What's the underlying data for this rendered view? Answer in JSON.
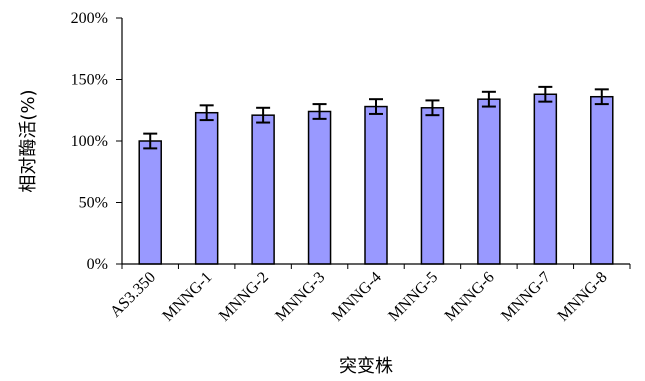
{
  "chart_data": {
    "type": "bar",
    "title": "",
    "xlabel": "突变株",
    "ylabel": "相对酶活(%)",
    "ylim": [
      0,
      200
    ],
    "yticks": [
      0,
      50,
      100,
      150,
      200
    ],
    "ytick_labels": [
      "0%",
      "50%",
      "100%",
      "150%",
      "200%"
    ],
    "categories": [
      "AS3.350",
      "MNNG-1",
      "MNNG-2",
      "MNNG-3",
      "MNNG-4",
      "MNNG-5",
      "MNNG-6",
      "MNNG-7",
      "MNNG-8"
    ],
    "values": [
      100,
      123,
      121,
      124,
      128,
      127,
      134,
      138,
      136
    ],
    "error": [
      6,
      6,
      6,
      6,
      6,
      6,
      6,
      6,
      6
    ],
    "grid": false,
    "legend": "none",
    "colors": {
      "bar_fill": "#9999ff",
      "bar_stroke": "#000000",
      "axis": "#000000"
    }
  }
}
